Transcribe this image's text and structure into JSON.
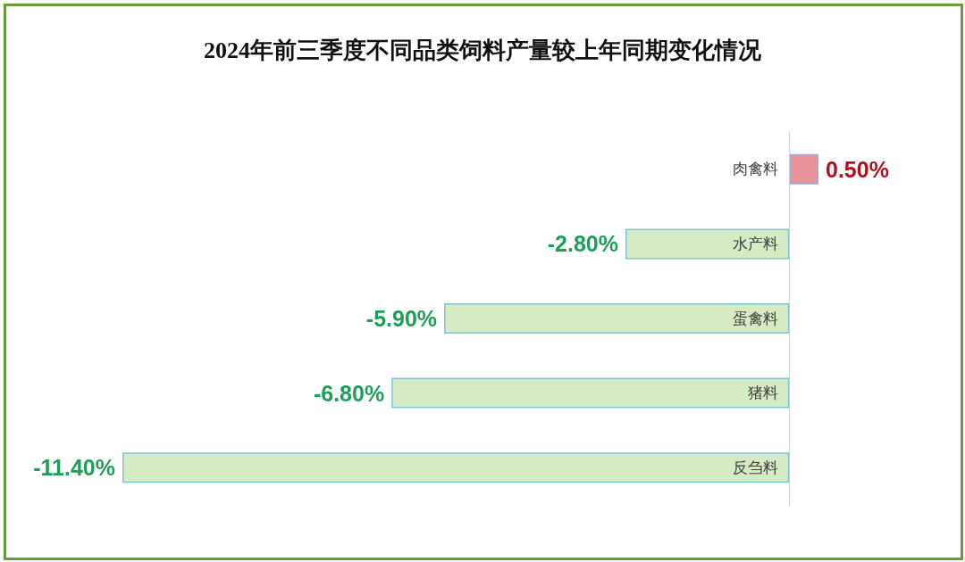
{
  "chart_data": {
    "type": "bar",
    "orientation": "horizontal",
    "title": "2024年前三季度不同品类饲料产量较上年同期变化情况",
    "categories": [
      "肉禽料",
      "水产料",
      "蛋禽料",
      "猪料",
      "反刍料"
    ],
    "values": [
      0.5,
      -2.8,
      -5.9,
      -6.8,
      -11.4
    ],
    "colors": [
      "#e8939c",
      "#d6eac4",
      "#d6eac4",
      "#d6eac4",
      "#d6eac4"
    ],
    "value_labels": [
      "0.50%",
      "-2.80%",
      "-5.90%",
      "-6.80%",
      "-11.40%"
    ],
    "grid": false,
    "tick_labels": "y"
  }
}
